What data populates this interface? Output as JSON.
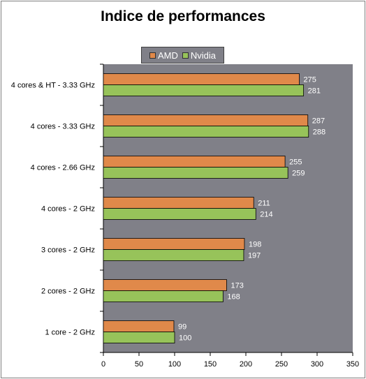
{
  "chart_data": {
    "type": "bar",
    "orientation": "horizontal",
    "title": "Indice de performances",
    "categories": [
      "4 cores & HT - 3.33 GHz",
      "4 cores - 3.33 GHz",
      "4 cores - 2.66 GHz",
      "4 cores - 2 GHz",
      "3 cores - 2 GHz",
      "2 cores - 2 GHz",
      "1 core - 2 GHz"
    ],
    "series": [
      {
        "name": "AMD",
        "color": "#e0894a",
        "values": [
          275,
          287,
          255,
          211,
          198,
          173,
          99
        ]
      },
      {
        "name": "Nvidia",
        "color": "#97c35a",
        "values": [
          281,
          288,
          259,
          214,
          197,
          168,
          100
        ]
      }
    ],
    "xlim": [
      0,
      350
    ],
    "xticks": [
      0,
      50,
      100,
      150,
      200,
      250,
      300,
      350
    ],
    "plot_background": "#808088",
    "legend_position": "top",
    "data_labels": true
  }
}
